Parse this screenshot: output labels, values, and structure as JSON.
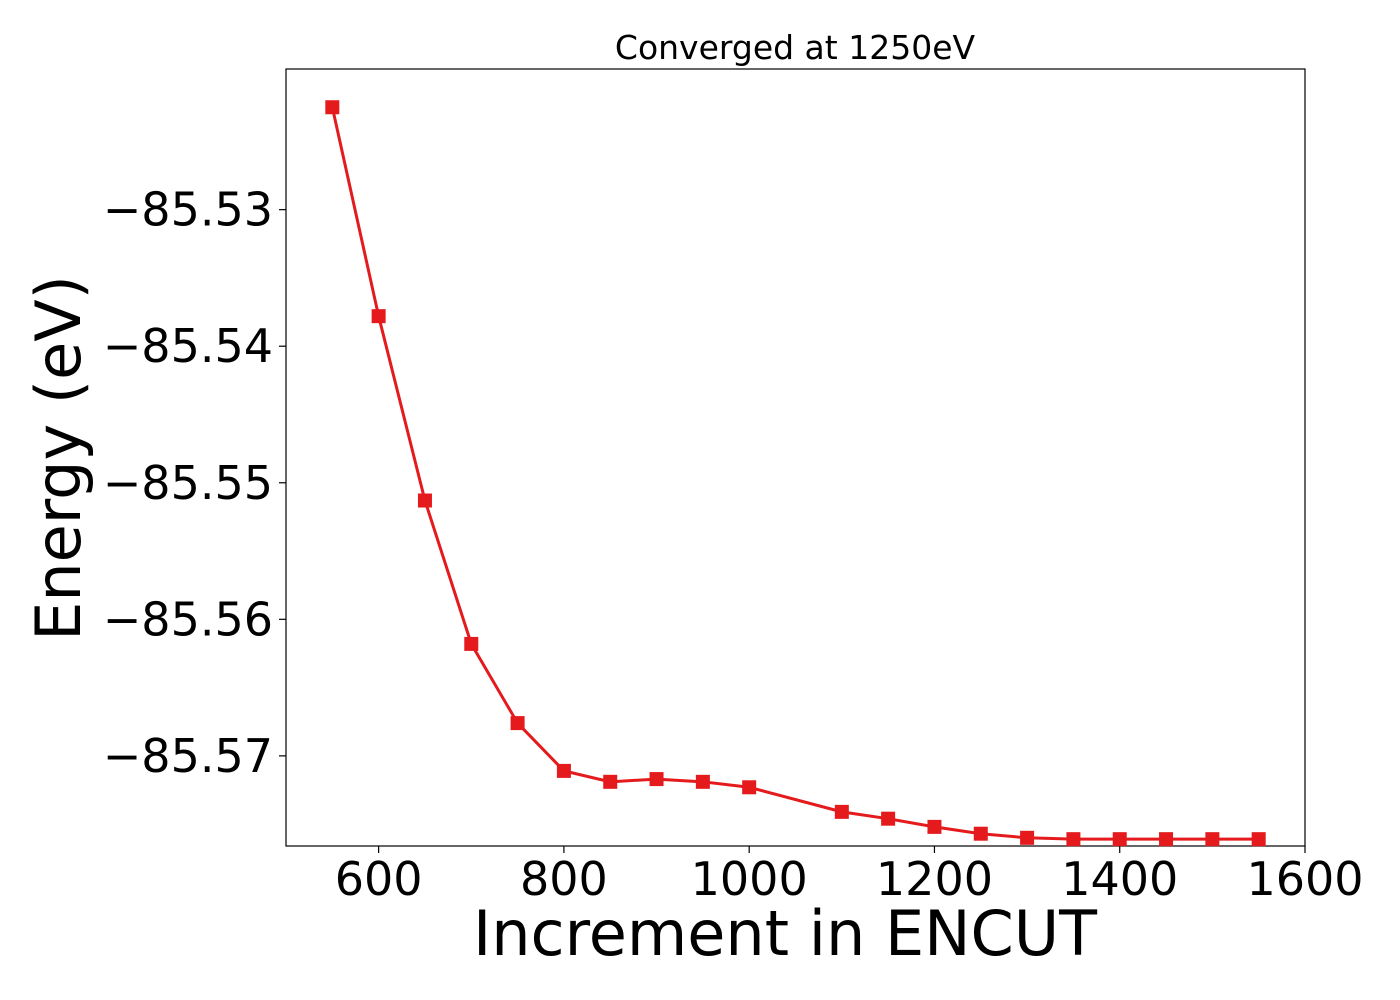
{
  "chart_data": {
    "type": "line",
    "title": "Converged at 1250eV",
    "xlabel": "Increment in ENCUT",
    "ylabel": "Energy (eV)",
    "xlim": [
      500,
      1600
    ],
    "ylim": [
      -85.5766,
      -85.5197
    ],
    "xticks": [
      600,
      800,
      1000,
      1200,
      1400,
      1600
    ],
    "xtick_labels": [
      "600",
      "800",
      "1000",
      "1200",
      "1400",
      "1600"
    ],
    "yticks": [
      -85.53,
      -85.54,
      -85.55,
      -85.56,
      -85.57
    ],
    "ytick_labels": [
      "−85.53",
      "−85.54",
      "−85.55",
      "−85.56",
      "−85.57"
    ],
    "grid": false,
    "legend": "none",
    "series": [
      {
        "color": "#e41a1c",
        "marker": "square",
        "x": [
          550,
          600,
          650,
          700,
          750,
          800,
          850,
          900,
          950,
          1000,
          1100,
          1150,
          1200,
          1250,
          1300,
          1350,
          1400,
          1450,
          1500,
          1550
        ],
        "y": [
          -85.5225,
          -85.5378,
          -85.5513,
          -85.5618,
          -85.5676,
          -85.5711,
          -85.5719,
          -85.5717,
          -85.5719,
          -85.5723,
          -85.5741,
          -85.5746,
          -85.5752,
          -85.5757,
          -85.576,
          -85.5761,
          -85.5761,
          -85.5761,
          -85.5761,
          -85.5761
        ]
      }
    ]
  }
}
